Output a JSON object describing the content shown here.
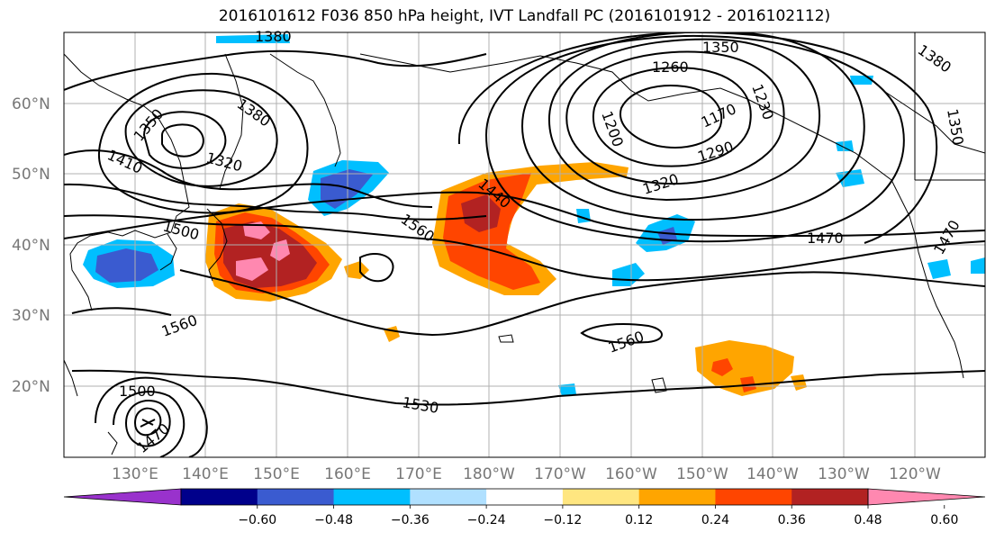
{
  "title": "2016101612 F036 850 hPa height, IVT Landfall PC (2016101912 - 2016102112)",
  "lat_labels": [
    "60°N",
    "50°N",
    "40°N",
    "30°N",
    "20°N"
  ],
  "lon_labels": [
    "130°E",
    "140°E",
    "150°E",
    "160°E",
    "170°E",
    "180°W",
    "170°W",
    "160°W",
    "150°W",
    "140°W",
    "130°W",
    "120°W"
  ],
  "contour_labels": [
    "1380",
    "1350",
    "1260",
    "1230",
    "1170",
    "1290",
    "1350",
    "1380",
    "1200",
    "1320",
    "1350",
    "1380",
    "1320",
    "1410",
    "1440",
    "1500",
    "1560",
    "1470",
    "1560",
    "1560",
    "1500",
    "1530",
    "1470",
    "1470"
  ],
  "colorbar": {
    "ticks": [
      "−0.60",
      "−0.48",
      "−0.36",
      "−0.24",
      "−0.12",
      "0.12",
      "0.24",
      "0.36",
      "0.48",
      "0.60"
    ],
    "colors": [
      "#9932cc",
      "#00008b",
      "#3a5bd0",
      "#00bfff",
      "#b0e0ff",
      "#ffffff",
      "#ffe680",
      "#ffa500",
      "#ff4500",
      "#b22222",
      "#ff88b0"
    ]
  }
}
